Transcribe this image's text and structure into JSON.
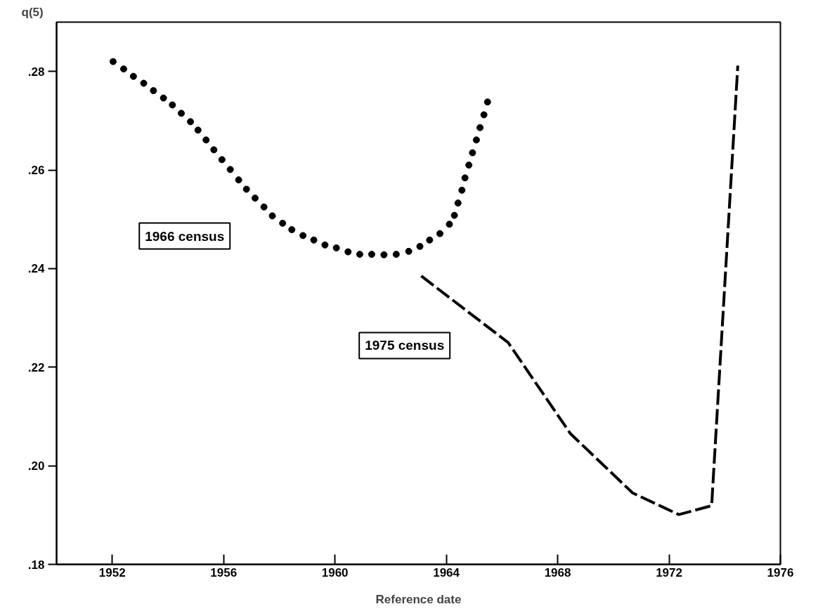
{
  "chart_data": {
    "type": "line",
    "xlabel": "Reference date",
    "ylabel": "q(5)",
    "xlim": [
      1950,
      1976
    ],
    "xticks": [
      1952,
      1956,
      1960,
      1964,
      1968,
      1972,
      1976
    ],
    "ylim": [
      0.18,
      0.29
    ],
    "yticks": [
      {
        "value": 0.18,
        "label": ".18"
      },
      {
        "value": 0.2,
        "label": ".20"
      },
      {
        "value": 0.22,
        "label": ".22"
      },
      {
        "value": 0.24,
        "label": ".24"
      },
      {
        "value": 0.26,
        "label": ".26"
      },
      {
        "value": 0.28,
        "label": ".28"
      }
    ],
    "grid": false,
    "legend": false,
    "series": [
      {
        "name": "1966 census",
        "type": "scatter",
        "marker": "circle",
        "color": "#000000",
        "x": [
          1952.03,
          1952.41,
          1952.76,
          1953.13,
          1953.48,
          1953.84,
          1954.16,
          1954.48,
          1954.81,
          1955.08,
          1955.37,
          1955.65,
          1955.94,
          1956.24,
          1956.54,
          1956.82,
          1957.13,
          1957.45,
          1957.75,
          1958.12,
          1958.45,
          1958.85,
          1959.24,
          1959.64,
          1960.05,
          1960.47,
          1960.89,
          1961.32,
          1961.76,
          1962.2,
          1962.65,
          1963.05,
          1963.4,
          1963.77,
          1964.11,
          1964.29,
          1964.42,
          1964.56,
          1964.67,
          1964.81,
          1964.94,
          1965.08,
          1965.21,
          1965.35,
          1965.48
        ],
        "values": [
          0.282,
          0.2805,
          0.279,
          0.2776,
          0.2761,
          0.2746,
          0.2732,
          0.2715,
          0.2698,
          0.2681,
          0.2661,
          0.2641,
          0.2621,
          0.2601,
          0.258,
          0.2561,
          0.2543,
          0.2525,
          0.2507,
          0.2492,
          0.2479,
          0.2467,
          0.2458,
          0.2448,
          0.2442,
          0.2434,
          0.2429,
          0.2429,
          0.2428,
          0.2429,
          0.2435,
          0.2445,
          0.2458,
          0.2471,
          0.249,
          0.2508,
          0.2533,
          0.2559,
          0.2584,
          0.261,
          0.2635,
          0.2661,
          0.2686,
          0.2712,
          0.2738
        ]
      },
      {
        "name": "1975 census",
        "line_style": "dashed",
        "color": "#000000",
        "x": [
          1963.1,
          1966.22,
          1968.46,
          1970.69,
          1972.35,
          1973.53,
          1974.47
        ],
        "values": [
          0.2385,
          0.225,
          0.2065,
          0.1945,
          0.1901,
          0.1919,
          0.2812
        ]
      }
    ]
  }
}
